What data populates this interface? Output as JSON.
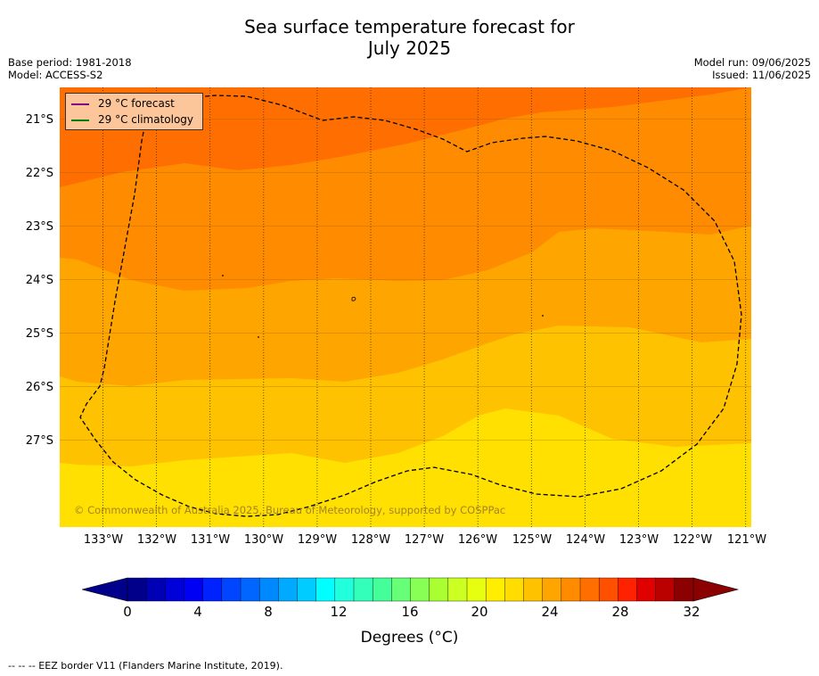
{
  "title": {
    "line1": "Sea surface temperature forecast for",
    "line2": "July 2025"
  },
  "meta": {
    "base_period": "Base period: 1981-2018",
    "model": "Model: ACCESS-S2",
    "model_run": "Model run: 09/06/2025",
    "issued": "Issued: 11/06/2025"
  },
  "map": {
    "lat_labels": [
      "21°S",
      "22°S",
      "23°S",
      "24°S",
      "25°S",
      "26°S",
      "27°S"
    ],
    "lon_labels": [
      "133°W",
      "132°W",
      "131°W",
      "130°W",
      "129°W",
      "128°W",
      "127°W",
      "126°W",
      "125°W",
      "124°W",
      "123°W",
      "122°W",
      "121°W"
    ],
    "copyright": "© Commonwealth of Australia 2025, Bureau of Meteorology, supported by COSPPac",
    "band_colors": {
      "28_29": "#ff6e00",
      "27_28": "#ff8c00",
      "26_27": "#ffa500",
      "25_26": "#ffc200",
      "24_25": "#ffe000"
    }
  },
  "legend": {
    "forecast": "29 °C  forecast",
    "climatology": "29 °C  climatology",
    "forecast_color": "#800080",
    "climatology_color": "#008000"
  },
  "colorbar": {
    "labels": [
      "0",
      "4",
      "8",
      "12",
      "16",
      "20",
      "24",
      "28",
      "32"
    ],
    "colors": [
      "#00008b",
      "#0000b5",
      "#0000d8",
      "#0000f5",
      "#0022ff",
      "#0045ff",
      "#0066ff",
      "#0088ff",
      "#00aaff",
      "#00ccff",
      "#00ffff",
      "#22ffdd",
      "#33ffbb",
      "#44ff99",
      "#66ff77",
      "#88ff55",
      "#aaff33",
      "#ccff22",
      "#e6ff11",
      "#ffee00",
      "#ffdd00",
      "#ffc200",
      "#ffa500",
      "#ff8c00",
      "#ff6e00",
      "#ff5000",
      "#ff2200",
      "#e00000",
      "#bb0000",
      "#8b0000"
    ],
    "units": "Degrees (°C)"
  },
  "footnote": "-- -- -- EEZ border V11 (Flanders Marine Institute, 2019)."
}
